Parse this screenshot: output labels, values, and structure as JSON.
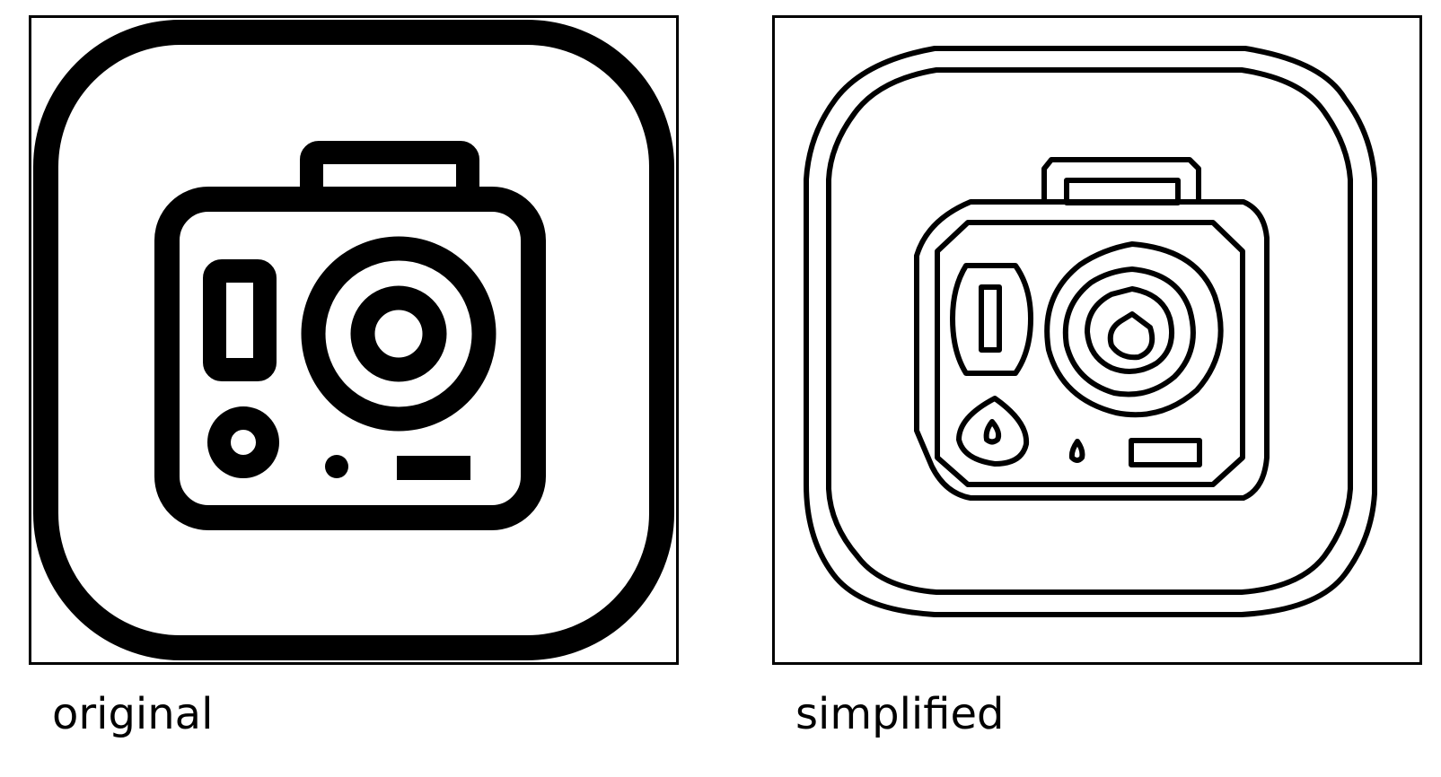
{
  "panels": [
    {
      "caption": "original",
      "icon": "action-camera-icon",
      "style": "filled-stroke"
    },
    {
      "caption": "simplified",
      "icon": "action-camera-icon",
      "style": "outline"
    }
  ],
  "colors": {
    "ink": "#000000",
    "background": "#ffffff"
  }
}
